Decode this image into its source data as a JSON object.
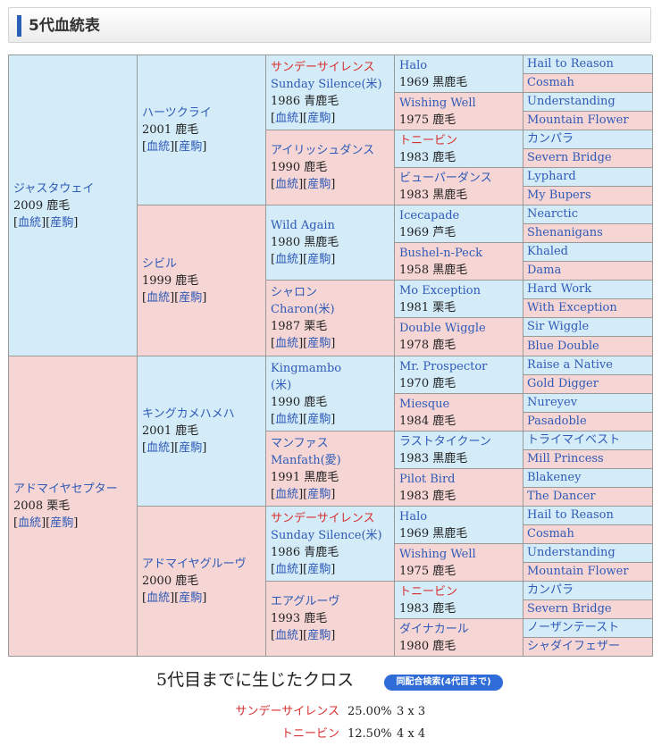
{
  "header": {
    "title": "5代血統表"
  },
  "links": {
    "ped": "血統",
    "prog": "産駒"
  },
  "pedigree": {
    "g1": [
      {
        "lines": [
          "ジャスタウェイ"
        ],
        "info": "2009 鹿毛",
        "links": true
      },
      {
        "lines": [
          "アドマイヤセプター"
        ],
        "info": "2008 栗毛",
        "links": true
      }
    ],
    "g2": [
      {
        "lines": [
          "ハーツクライ"
        ],
        "info": "2001 鹿毛",
        "links": true
      },
      {
        "lines": [
          "シビル"
        ],
        "info": "1999 鹿毛",
        "links": true
      },
      {
        "lines": [
          "キングカメハメハ"
        ],
        "info": "2001 鹿毛",
        "links": true
      },
      {
        "lines": [
          "アドマイヤグルーヴ"
        ],
        "info": "2000 鹿毛",
        "links": true
      }
    ],
    "g3": [
      {
        "lines": [
          "サンデーサイレンス",
          "Sunday Silence(米)"
        ],
        "info": "1986 青鹿毛",
        "links": true,
        "cross": true
      },
      {
        "lines": [
          "アイリッシュダンス"
        ],
        "info": "1990 鹿毛",
        "links": true
      },
      {
        "lines": [
          "Wild Again"
        ],
        "info": "1980 黒鹿毛",
        "links": true
      },
      {
        "lines": [
          "シャロン",
          "Charon(米)"
        ],
        "info": "1987 栗毛",
        "links": true
      },
      {
        "lines": [
          "Kingmambo",
          "(米)"
        ],
        "info": "1990 鹿毛",
        "links": true
      },
      {
        "lines": [
          "マンファス",
          "Manfath(愛)"
        ],
        "info": "1991 黒鹿毛",
        "links": true
      },
      {
        "lines": [
          "サンデーサイレンス",
          "Sunday Silence(米)"
        ],
        "info": "1986 青鹿毛",
        "links": true,
        "cross": true
      },
      {
        "lines": [
          "エアグルーヴ"
        ],
        "info": "1993 鹿毛",
        "links": true
      }
    ],
    "g4": [
      {
        "lines": [
          "Halo"
        ],
        "info": "1969 黒鹿毛"
      },
      {
        "lines": [
          "Wishing Well"
        ],
        "info": "1975 鹿毛"
      },
      {
        "lines": [
          "トニービン"
        ],
        "info": "1983 鹿毛",
        "cross": true
      },
      {
        "lines": [
          "ビューパーダンス"
        ],
        "info": "1983 黒鹿毛"
      },
      {
        "lines": [
          "Icecapade"
        ],
        "info": "1969 芦毛"
      },
      {
        "lines": [
          "Bushel-n-Peck"
        ],
        "info": "1958 黒鹿毛"
      },
      {
        "lines": [
          "Mo Exception"
        ],
        "info": "1981 栗毛"
      },
      {
        "lines": [
          "Double Wiggle"
        ],
        "info": "1978 鹿毛"
      },
      {
        "lines": [
          "Mr. Prospector"
        ],
        "info": "1970 鹿毛"
      },
      {
        "lines": [
          "Miesque"
        ],
        "info": "1984 鹿毛"
      },
      {
        "lines": [
          "ラストタイクーン"
        ],
        "info": "1983 黒鹿毛"
      },
      {
        "lines": [
          "Pilot Bird"
        ],
        "info": "1983 鹿毛"
      },
      {
        "lines": [
          "Halo"
        ],
        "info": "1969 黒鹿毛"
      },
      {
        "lines": [
          "Wishing Well"
        ],
        "info": "1975 鹿毛"
      },
      {
        "lines": [
          "トニービン"
        ],
        "info": "1983 鹿毛",
        "cross": true
      },
      {
        "lines": [
          "ダイナカール"
        ],
        "info": "1980 鹿毛"
      }
    ],
    "g5": [
      "Hail to Reason",
      "Cosmah",
      "Understanding",
      "Mountain Flower",
      "カンパラ",
      "Severn Bridge",
      "Lyphard",
      "My Bupers",
      "Nearctic",
      "Shenanigans",
      "Khaled",
      "Dama",
      "Hard Work",
      "With Exception",
      "Sir Wiggle",
      "Blue Double",
      "Raise a Native",
      "Gold Digger",
      "Nureyev",
      "Pasadoble",
      "トライマイベスト",
      "Mill Princess",
      "Blakeney",
      "The Dancer",
      "Hail to Reason",
      "Cosmah",
      "Understanding",
      "Mountain Flower",
      "カンパラ",
      "Severn Bridge",
      "ノーザンテースト",
      "シャダイフェザー"
    ]
  },
  "crosses": {
    "title": "5代目までに生じたクロス",
    "button": "同配合検索(4代目まで)",
    "rows": [
      {
        "name": "サンデーサイレンス",
        "pct": "25.00%",
        "gen": "3 x 3"
      },
      {
        "name": "トニービン",
        "pct": "12.50%",
        "gen": "4 x 4"
      }
    ]
  },
  "colors": {
    "male": "#d4ecf8",
    "female": "#f6d6d4",
    "link": "#2f5ab7",
    "cross": "#d83030"
  }
}
